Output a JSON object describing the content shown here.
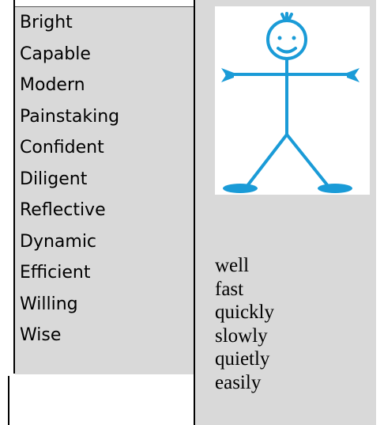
{
  "table": {
    "left_words": [
      "Bright",
      "Capable",
      "Modern",
      "Painstaking",
      "Confident",
      "Diligent",
      "Reflective",
      "Dynamic",
      "Efficient",
      "Willing",
      "Wise"
    ],
    "right_words": [
      "well",
      "fast",
      "quickly",
      "slowly",
      "quietly",
      "easily"
    ]
  }
}
